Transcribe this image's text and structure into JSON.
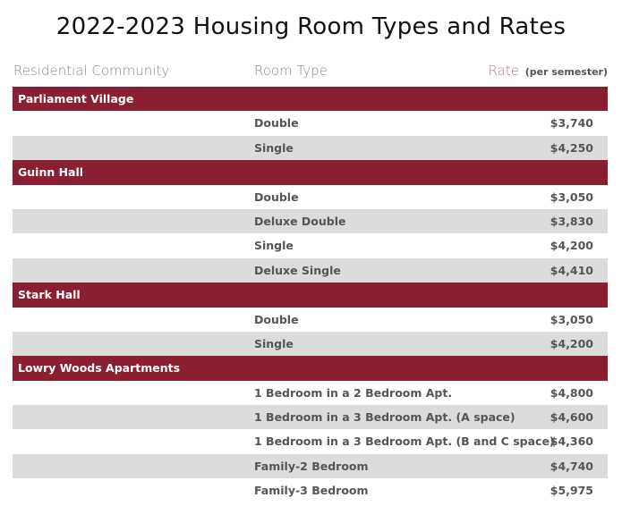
{
  "title": "2022-2023 Housing Room Types and Rates",
  "headers": {
    "community": "Residential Community",
    "room": "Room Type",
    "rate": "Rate",
    "rate_note": "(per semester)"
  },
  "groups": [
    {
      "name": "Parliament Village",
      "rooms": [
        {
          "type": "Double",
          "rate": "$3,740"
        },
        {
          "type": "Single",
          "rate": "$4,250"
        }
      ]
    },
    {
      "name": "Guinn Hall",
      "rooms": [
        {
          "type": "Double",
          "rate": "$3,050"
        },
        {
          "type": "Deluxe Double",
          "rate": "$3,830"
        },
        {
          "type": "Single",
          "rate": "$4,200"
        },
        {
          "type": "Deluxe Single",
          "rate": "$4,410"
        }
      ]
    },
    {
      "name": "Stark Hall",
      "rooms": [
        {
          "type": "Double",
          "rate": "$3,050"
        },
        {
          "type": "Single",
          "rate": "$4,200"
        }
      ]
    },
    {
      "name": "Lowry Woods Apartments",
      "rooms": [
        {
          "type": "1 Bedroom in a 2 Bedroom Apt.",
          "rate": "$4,800"
        },
        {
          "type": "1 Bedroom in a 3 Bedroom Apt. (A space)",
          "rate": "$4,600"
        },
        {
          "type": "1 Bedroom in a 3 Bedroom Apt. (B and C space)",
          "rate": "$4,360"
        },
        {
          "type": "Family-2 Bedroom",
          "rate": "$4,740"
        },
        {
          "type": "Family-3 Bedroom",
          "rate": "$5,975"
        }
      ]
    }
  ],
  "colors": {
    "group_bg": "#8b1f32",
    "alt_row_bg": "#dcdcdc"
  }
}
